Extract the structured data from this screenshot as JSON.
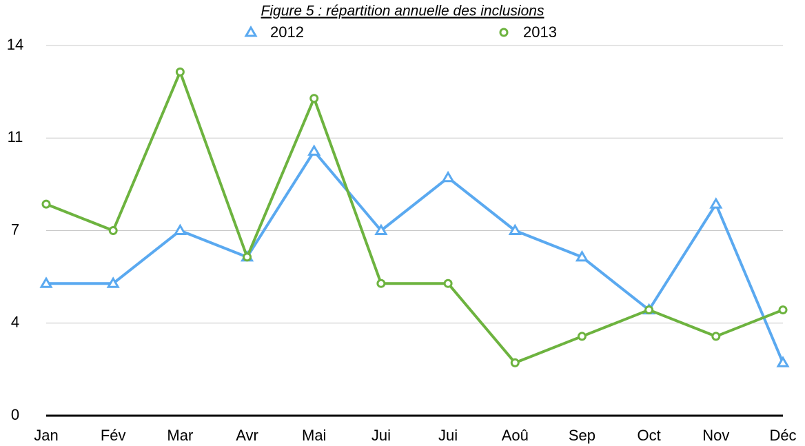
{
  "chart_data": {
    "type": "line",
    "title": "Figure 5 : répartition annuelle des inclusions",
    "categories": [
      "Jan",
      "Fév",
      "Mar",
      "Avr",
      "Mai",
      "Jui",
      "Jui",
      "Aoû",
      "Sep",
      "Oct",
      "Nov",
      "Déc"
    ],
    "series": [
      {
        "name": "2012",
        "color": "#5aa9f0",
        "marker": "triangle",
        "values": [
          5,
          5,
          7,
          6,
          10,
          7,
          9,
          7,
          6,
          4,
          8,
          2
        ]
      },
      {
        "name": "2013",
        "color": "#6db33f",
        "marker": "circle",
        "values": [
          8,
          7,
          13,
          6,
          12,
          5,
          5,
          2,
          3,
          4,
          3,
          4
        ]
      }
    ],
    "ylim": [
      0,
      14
    ],
    "yticks": [
      0,
      {
        "value": 3.5,
        "label": "4"
      },
      7,
      {
        "value": 10.5,
        "label": "11"
      },
      14
    ],
    "grid": true,
    "legend": "top"
  }
}
